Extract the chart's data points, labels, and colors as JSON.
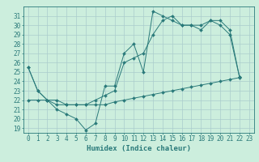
{
  "title": "",
  "xlabel": "Humidex (Indice chaleur)",
  "ylabel": "",
  "bg_color": "#cceedd",
  "grid_color": "#aacccc",
  "line_color": "#2a7a7a",
  "line1": [
    25.5,
    23.0,
    22.0,
    21.0,
    20.5,
    20.0,
    18.8,
    19.5,
    23.5,
    23.5,
    27.0,
    28.0,
    25.0,
    31.5,
    31.0,
    30.5,
    30.0,
    30.0,
    29.5,
    30.5,
    30.0,
    29.0,
    24.5
  ],
  "line2": [
    25.5,
    23.0,
    22.0,
    21.5,
    21.5,
    21.5,
    21.5,
    22.0,
    22.5,
    23.0,
    26.0,
    26.5,
    27.0,
    29.0,
    30.5,
    31.0,
    30.0,
    30.0,
    30.0,
    30.5,
    30.5,
    29.5,
    24.5
  ],
  "line3": [
    22.0,
    22.0,
    22.0,
    22.0,
    21.5,
    21.5,
    21.5,
    21.5,
    21.5,
    21.8,
    22.0,
    22.2,
    22.4,
    22.6,
    22.8,
    23.0,
    23.2,
    23.4,
    23.6,
    23.8,
    24.0,
    24.2,
    24.4
  ],
  "xlim": [
    -0.5,
    23.5
  ],
  "ylim": [
    18.5,
    32.0
  ],
  "yticks": [
    19,
    20,
    21,
    22,
    23,
    24,
    25,
    26,
    27,
    28,
    29,
    30,
    31
  ],
  "xticks": [
    0,
    1,
    2,
    3,
    4,
    5,
    6,
    7,
    8,
    9,
    10,
    11,
    12,
    13,
    14,
    15,
    16,
    17,
    18,
    19,
    20,
    21,
    22,
    23
  ],
  "tick_fontsize": 5.5,
  "xlabel_fontsize": 6.5,
  "markersize": 2.0
}
